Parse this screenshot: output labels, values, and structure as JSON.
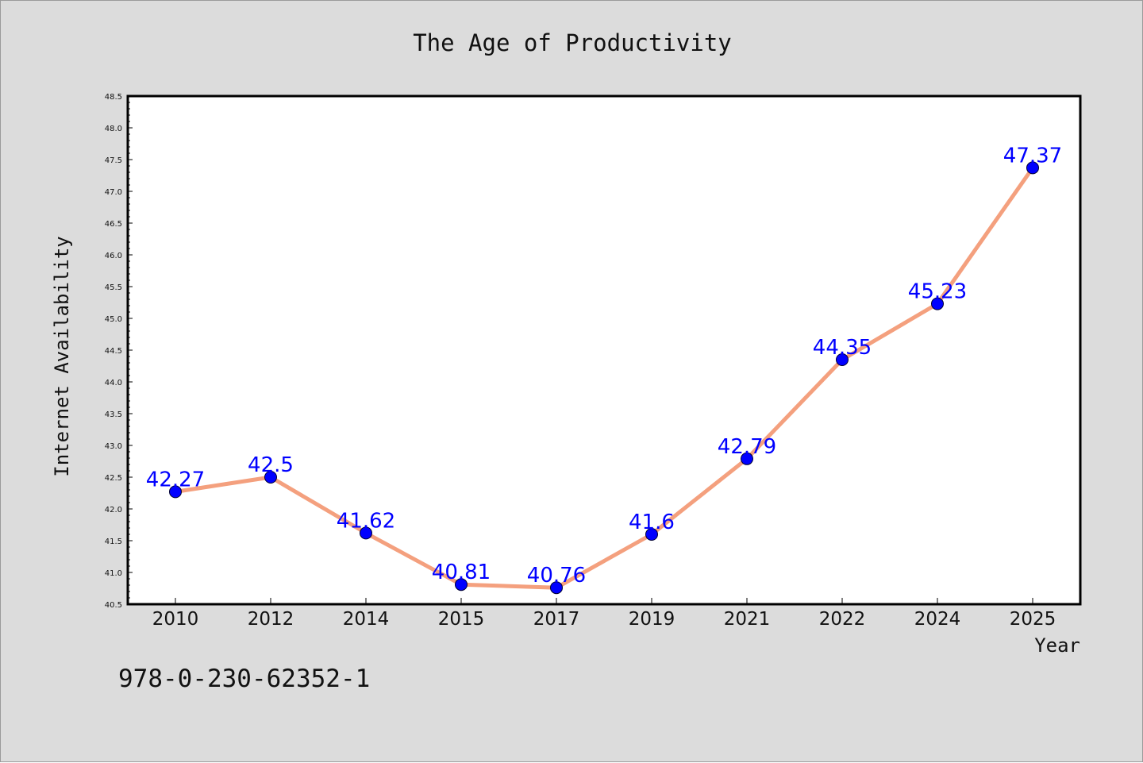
{
  "chart_data": {
    "type": "line",
    "title": "The Age of Productivity",
    "xlabel": "Year",
    "ylabel": "Internet Availability",
    "categories": [
      "2010",
      "2012",
      "2014",
      "2015",
      "2017",
      "2019",
      "2021",
      "2022",
      "2024",
      "2025"
    ],
    "series": [
      {
        "values": [
          42.27,
          42.5,
          41.62,
          40.81,
          40.76,
          41.6,
          42.79,
          44.35,
          45.23,
          47.37
        ],
        "labels": [
          "42.27",
          "42.5",
          "41.62",
          "40.81",
          "40.76",
          "41.6",
          "42.79",
          "44.35",
          "45.23",
          "47.37"
        ],
        "line_color": "#f4a07e",
        "marker_color": "#0000ff"
      }
    ],
    "ylim": [
      40.5,
      48.5
    ],
    "yticks": [
      "40.5",
      "41.0",
      "41.5",
      "42.0",
      "42.5",
      "43.0",
      "43.5",
      "44.0",
      "44.5",
      "45.0",
      "45.5",
      "46.0",
      "46.5",
      "47.0",
      "47.5",
      "48.0",
      "48.5"
    ],
    "grid": false,
    "data_labels": true
  },
  "footer": {
    "code": "978-0-230-62352-1"
  },
  "colors": {
    "background": "#dcdcdc",
    "plot_area": "#ffffff",
    "line": "#f4a07e",
    "marker": "#0000ff",
    "data_label": "#0000ff"
  }
}
